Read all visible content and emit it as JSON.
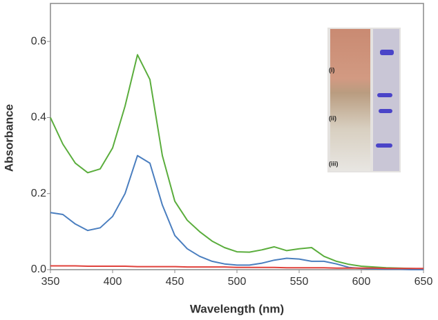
{
  "chart_data": {
    "type": "line",
    "x_label": "Wavelength (nm)",
    "y_label": "Absorbance",
    "x": [
      350,
      360,
      370,
      380,
      390,
      400,
      410,
      420,
      430,
      440,
      450,
      460,
      470,
      480,
      490,
      500,
      510,
      520,
      530,
      540,
      550,
      560,
      570,
      580,
      590,
      600,
      610,
      620,
      630,
      640,
      650
    ],
    "series": [
      {
        "color": "#5aad3c",
        "values": [
          0.4,
          0.33,
          0.28,
          0.255,
          0.265,
          0.32,
          0.43,
          0.565,
          0.5,
          0.3,
          0.18,
          0.13,
          0.1,
          0.075,
          0.058,
          0.047,
          0.046,
          0.052,
          0.06,
          0.05,
          0.055,
          0.058,
          0.035,
          0.022,
          0.014,
          0.009,
          0.007,
          0.005,
          0.004,
          0.003,
          0.002
        ]
      },
      {
        "color": "#4a7ebf",
        "values": [
          0.15,
          0.145,
          0.12,
          0.103,
          0.11,
          0.14,
          0.2,
          0.3,
          0.28,
          0.17,
          0.09,
          0.055,
          0.035,
          0.022,
          0.015,
          0.012,
          0.012,
          0.017,
          0.025,
          0.03,
          0.028,
          0.022,
          0.022,
          0.015,
          0.006,
          0.003,
          0.002,
          0.001,
          0.001,
          0,
          0
        ]
      },
      {
        "color": "#e0403a",
        "values": [
          0.01,
          0.01,
          0.01,
          0.009,
          0.009,
          0.009,
          0.009,
          0.008,
          0.008,
          0.008,
          0.008,
          0.007,
          0.007,
          0.007,
          0.007,
          0.006,
          0.006,
          0.006,
          0.006,
          0.005,
          0.005,
          0.005,
          0.005,
          0.004,
          0.004,
          0.004,
          0.004,
          0.003,
          0.003,
          0.003,
          0.003
        ]
      }
    ],
    "xlim": [
      350,
      650
    ],
    "xticks": [
      350,
      400,
      450,
      500,
      550,
      600,
      650
    ],
    "ylim": [
      0,
      0.7
    ],
    "yticks": [
      {
        "value": 0,
        "label": "0.0"
      },
      0.2,
      0.4,
      0.6
    ],
    "inset_labels": [
      "(i)",
      "(ii)",
      "(iii)"
    ]
  }
}
